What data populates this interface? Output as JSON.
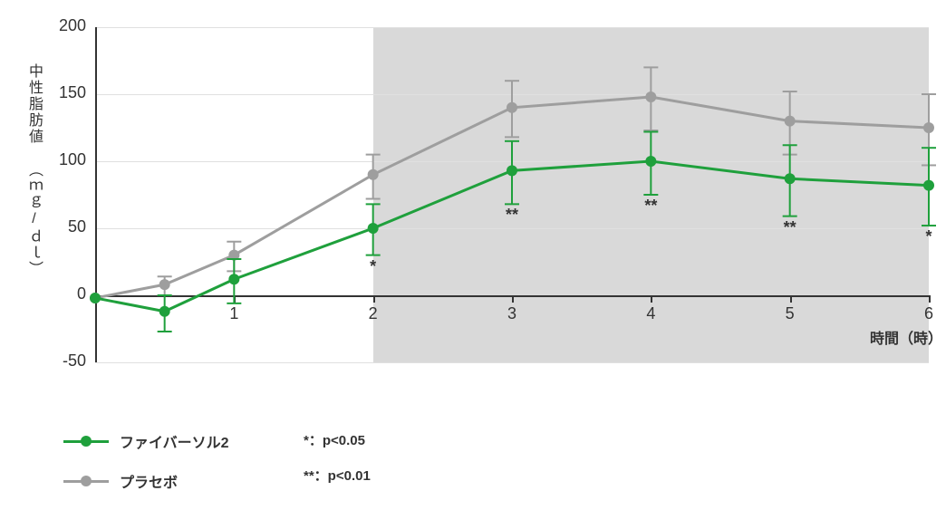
{
  "chart": {
    "type": "line",
    "background_color": "#ffffff",
    "shaded_region_color": "#d9d9d9",
    "shaded_region_x_start": 2,
    "shaded_region_x_end": 6,
    "grid_color": "#e0e0e0",
    "axis_color": "#333333",
    "y_axis": {
      "title": "中性脂肪値 （ｍｇ/ｄｌ）",
      "min": -50,
      "max": 200,
      "tick_step": 50,
      "ticks": [
        -50,
        0,
        50,
        100,
        150,
        200
      ],
      "title_fontsize": 16,
      "tick_fontsize": 18
    },
    "x_axis": {
      "title": "時間（時）",
      "min": 0,
      "max": 6,
      "ticks": [
        0,
        1,
        2,
        3,
        4,
        5,
        6
      ],
      "visible_tick_labels": [
        1,
        2,
        3,
        4,
        5,
        6
      ],
      "title_fontsize": 16,
      "tick_fontsize": 18
    },
    "series": [
      {
        "name": "ファイバーソル2",
        "color": "#1fa03c",
        "line_width": 3,
        "marker": "circle",
        "marker_size": 12,
        "x": [
          0,
          0.5,
          1,
          2,
          3,
          4,
          5,
          6
        ],
        "y": [
          -2,
          -12,
          12,
          50,
          93,
          100,
          87,
          82
        ],
        "err_low": [
          null,
          15,
          18,
          20,
          25,
          25,
          28,
          30
        ],
        "err_high": [
          null,
          12,
          15,
          18,
          22,
          22,
          25,
          28
        ]
      },
      {
        "name": "プラセボ",
        "color": "#9e9e9e",
        "line_width": 3,
        "marker": "circle",
        "marker_size": 12,
        "x": [
          0,
          0.5,
          1,
          2,
          3,
          4,
          5,
          6
        ],
        "y": [
          -2,
          8,
          30,
          90,
          140,
          148,
          130,
          125
        ],
        "err_low": [
          null,
          8,
          12,
          18,
          22,
          25,
          25,
          28
        ],
        "err_high": [
          null,
          6,
          10,
          15,
          20,
          22,
          22,
          25
        ]
      }
    ],
    "significance_markers": [
      {
        "x": 2,
        "label": "*",
        "y_offset": 35
      },
      {
        "x": 3,
        "label": "**",
        "y_offset": 78
      },
      {
        "x": 4,
        "label": "**",
        "y_offset": 82
      },
      {
        "x": 5,
        "label": "**",
        "y_offset": 68
      },
      {
        "x": 6,
        "label": "*",
        "y_offset": 62
      }
    ]
  },
  "legend": {
    "items": [
      {
        "label": "ファイバーソル2",
        "color": "#1fa03c"
      },
      {
        "label": "プラセボ",
        "color": "#9e9e9e"
      }
    ]
  },
  "pvalue_notes": [
    {
      "label": "*：p<0.05"
    },
    {
      "label": "**：p<0.01"
    }
  ]
}
